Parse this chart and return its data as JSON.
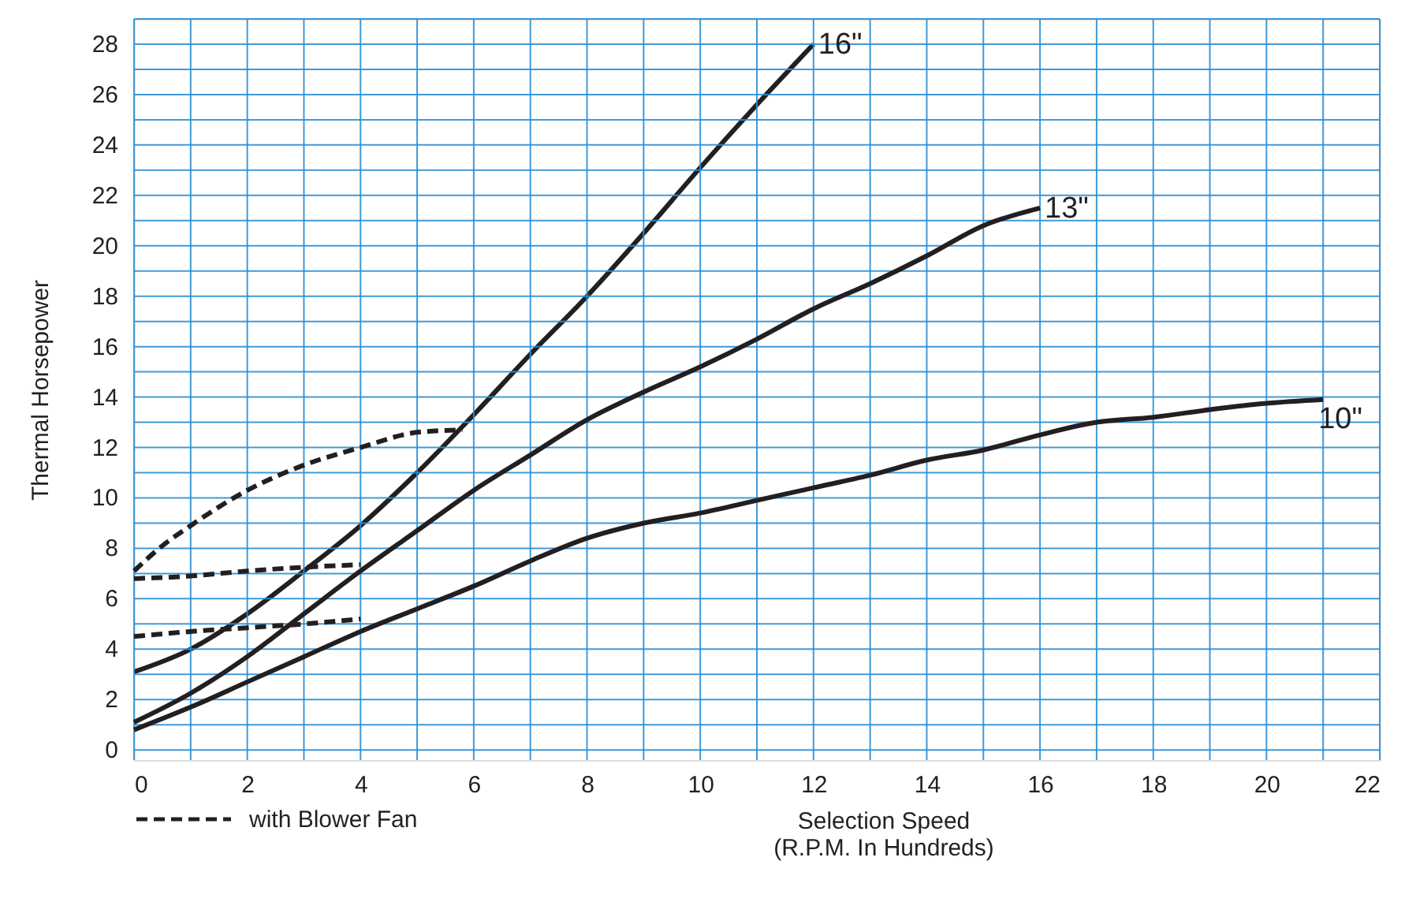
{
  "chart_data": {
    "type": "line",
    "xlabel": "Selection Speed\n(R.P.M. In Hundreds)",
    "ylabel": "Thermal Horsepower",
    "xlim": [
      0,
      22
    ],
    "ylim": [
      -0.4,
      29
    ],
    "xticks": [
      0,
      {
        "value": 1,
        "label": null
      },
      2,
      {
        "value": 3,
        "label": null
      },
      4,
      {
        "value": 5,
        "label": null
      },
      6,
      {
        "value": 7,
        "label": null
      },
      8,
      {
        "value": 9,
        "label": null
      },
      10,
      {
        "value": 11,
        "label": null
      },
      12,
      {
        "value": 13,
        "label": null
      },
      14,
      {
        "value": 15,
        "label": null
      },
      16,
      {
        "value": 17,
        "label": null
      },
      18,
      {
        "value": 19,
        "label": null
      },
      20,
      {
        "value": 21,
        "label": null
      },
      22
    ],
    "yticks": [
      0,
      {
        "value": 1,
        "label": null
      },
      2,
      {
        "value": 3,
        "label": null
      },
      4,
      {
        "value": 5,
        "label": null
      },
      6,
      {
        "value": 7,
        "label": null
      },
      8,
      {
        "value": 9,
        "label": null
      },
      10,
      {
        "value": 11,
        "label": null
      },
      12,
      {
        "value": 13,
        "label": null
      },
      14,
      {
        "value": 15,
        "label": null
      },
      16,
      {
        "value": 17,
        "label": null
      },
      18,
      {
        "value": 19,
        "label": null
      },
      20,
      {
        "value": 21,
        "label": null
      },
      22,
      {
        "value": 23,
        "label": null
      },
      24,
      {
        "value": 25,
        "label": null
      },
      26,
      {
        "value": 27,
        "label": null
      },
      28,
      {
        "value": 29,
        "label": null
      }
    ],
    "grid": true,
    "legend": "bottom left",
    "marker": "none",
    "series": [
      {
        "name": "16\"",
        "color": "#231f20",
        "line_style": "solid",
        "x": [
          0,
          1,
          2,
          3,
          4,
          5,
          6,
          7,
          8,
          9,
          10,
          11,
          12
        ],
        "values": [
          3.1,
          4.0,
          5.4,
          7.1,
          8.9,
          11.0,
          13.3,
          15.7,
          18.0,
          20.5,
          23.1,
          25.6,
          28.0
        ]
      },
      {
        "name": "13\"",
        "color": "#231f20",
        "line_style": "solid",
        "x": [
          0,
          1,
          2,
          3,
          4,
          5,
          6,
          7,
          8,
          9,
          10,
          11,
          12,
          13,
          14,
          15,
          16
        ],
        "values": [
          1.1,
          2.25,
          3.7,
          5.4,
          7.1,
          8.7,
          10.3,
          11.7,
          13.1,
          14.2,
          15.2,
          16.3,
          17.5,
          18.5,
          19.6,
          20.8,
          21.5
        ]
      },
      {
        "name": "10\"",
        "color": "#231f20",
        "line_style": "solid",
        "x": [
          0,
          1,
          2,
          3,
          4,
          5,
          6,
          7,
          8,
          9,
          10,
          11,
          12,
          13,
          14,
          15,
          16,
          17,
          18,
          19,
          20,
          21
        ],
        "values": [
          0.8,
          1.7,
          2.7,
          3.7,
          4.7,
          5.6,
          6.5,
          7.5,
          8.4,
          9.0,
          9.4,
          9.9,
          10.4,
          10.9,
          11.5,
          11.9,
          12.5,
          13.0,
          13.2,
          13.5,
          13.75,
          13.9
        ]
      },
      {
        "name": "with Blower Fan",
        "color": "#231f20",
        "line_style": "dashed",
        "x": [
          0,
          0.5,
          1,
          2,
          3,
          4,
          5,
          5.8
        ],
        "values": [
          7.1,
          8.1,
          8.9,
          10.3,
          11.3,
          12.0,
          12.6,
          12.7
        ]
      },
      {
        "color": "#231f20",
        "line_style": "dashed",
        "x": [
          0,
          1,
          2,
          3,
          4
        ],
        "values": [
          6.8,
          6.9,
          7.1,
          7.25,
          7.35
        ]
      },
      {
        "color": "#231f20",
        "line_style": "dashed",
        "x": [
          0,
          1,
          2,
          3,
          4
        ],
        "values": [
          4.5,
          4.7,
          4.85,
          5.0,
          5.2
        ]
      }
    ]
  }
}
